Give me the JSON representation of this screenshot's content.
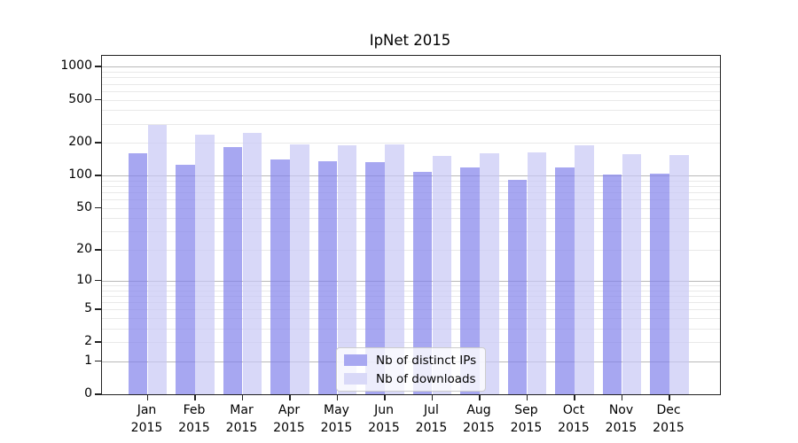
{
  "chart_data": {
    "type": "bar",
    "title": "IpNet 2015",
    "categories": [
      "Jan",
      "Feb",
      "Mar",
      "Apr",
      "May",
      "Jun",
      "Jul",
      "Aug",
      "Sep",
      "Oct",
      "Nov",
      "Dec"
    ],
    "year_label": "2015",
    "series": [
      {
        "name": "Nb of distinct IPs",
        "values": [
          160,
          126,
          182,
          141,
          135,
          132,
          108,
          118,
          92,
          119,
          103,
          104
        ],
        "bar_color": "rgba(130,130,235,0.7)",
        "legend_color": "#a8a8f1"
      },
      {
        "name": "Nb of downloads",
        "values": [
          292,
          237,
          248,
          195,
          192,
          195,
          153,
          161,
          163,
          191,
          157,
          155
        ],
        "bar_color": "rgba(200,200,245,0.7)",
        "legend_color": "#d9d9f8"
      }
    ],
    "xlabel": "",
    "ylabel": "",
    "yscale": "symlog-log1p",
    "yticks": [
      0,
      1,
      2,
      5,
      10,
      20,
      50,
      100,
      200,
      500,
      1000
    ],
    "ylim": [
      0,
      1262
    ],
    "grid": "on",
    "gridline_major_values": [
      1,
      10,
      100,
      1000
    ],
    "gridline_minor_color": "#e9e9e9",
    "gridline_major_color": "#b9b9b9",
    "legend_position": "lower center"
  }
}
